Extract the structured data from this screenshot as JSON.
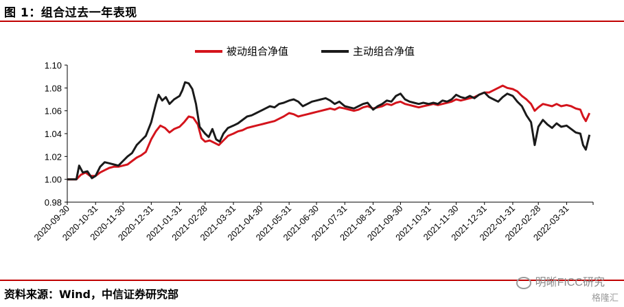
{
  "header": {
    "title": "图 1：组合过去一年表现"
  },
  "footer": {
    "source": "资料来源：Wind，中信证券研究部",
    "watermark": "明晰FICC研究",
    "logo": "格隆汇"
  },
  "colors": {
    "accent": "#c00000",
    "series1": "#d4141c",
    "series2": "#1a1a1a"
  },
  "chart_data": {
    "type": "line",
    "title": "",
    "xlabel": "",
    "ylabel": "",
    "ylim": [
      0.98,
      1.1
    ],
    "yticks": [
      "0.98",
      "1.00",
      "1.02",
      "1.04",
      "1.06",
      "1.08",
      "1.10"
    ],
    "legend_position": "top",
    "grid": false,
    "x_labels": [
      "2020-09-30",
      "2020-10-31",
      "2020-11-30",
      "2020-12-31",
      "2021-01-31",
      "2021-02-28",
      "2021-03-31",
      "2021-04-30",
      "2021-05-31",
      "2021-06-30",
      "2021-07-31",
      "2021-08-31",
      "2021-09-30",
      "2021-10-31",
      "2021-11-30",
      "2021-12-31",
      "2022-01-31",
      "2022-02-28",
      "2022-03-31"
    ],
    "series": [
      {
        "name": "被动组合净值",
        "color": "#d4141c",
        "points": [
          [
            "2020-09-30",
            1.0
          ],
          [
            "2020-10-05",
            1.0
          ],
          [
            "2020-10-10",
            1.0
          ],
          [
            "2020-10-15",
            1.004
          ],
          [
            "2020-10-20",
            1.006
          ],
          [
            "2020-10-25",
            1.003
          ],
          [
            "2020-10-31",
            1.003
          ],
          [
            "2020-11-05",
            1.006
          ],
          [
            "2020-11-10",
            1.008
          ],
          [
            "2020-11-15",
            1.01
          ],
          [
            "2020-11-20",
            1.011
          ],
          [
            "2020-11-25",
            1.011
          ],
          [
            "2020-11-30",
            1.012
          ],
          [
            "2020-12-05",
            1.013
          ],
          [
            "2020-12-10",
            1.016
          ],
          [
            "2020-12-15",
            1.019
          ],
          [
            "2020-12-20",
            1.021
          ],
          [
            "2020-12-25",
            1.024
          ],
          [
            "2020-12-31",
            1.035
          ],
          [
            "2021-01-05",
            1.042
          ],
          [
            "2021-01-10",
            1.047
          ],
          [
            "2021-01-15",
            1.045
          ],
          [
            "2021-01-20",
            1.041
          ],
          [
            "2021-01-25",
            1.044
          ],
          [
            "2021-01-31",
            1.046
          ],
          [
            "2021-02-05",
            1.05
          ],
          [
            "2021-02-10",
            1.055
          ],
          [
            "2021-02-15",
            1.054
          ],
          [
            "2021-02-20",
            1.048
          ],
          [
            "2021-02-24",
            1.036
          ],
          [
            "2021-02-28",
            1.033
          ],
          [
            "2021-03-05",
            1.034
          ],
          [
            "2021-03-10",
            1.032
          ],
          [
            "2021-03-15",
            1.03
          ],
          [
            "2021-03-20",
            1.034
          ],
          [
            "2021-03-25",
            1.038
          ],
          [
            "2021-03-31",
            1.04
          ],
          [
            "2021-04-05",
            1.042
          ],
          [
            "2021-04-10",
            1.043
          ],
          [
            "2021-04-15",
            1.045
          ],
          [
            "2021-04-20",
            1.046
          ],
          [
            "2021-04-25",
            1.047
          ],
          [
            "2021-04-30",
            1.048
          ],
          [
            "2021-05-05",
            1.049
          ],
          [
            "2021-05-10",
            1.05
          ],
          [
            "2021-05-15",
            1.051
          ],
          [
            "2021-05-20",
            1.053
          ],
          [
            "2021-05-25",
            1.055
          ],
          [
            "2021-05-31",
            1.058
          ],
          [
            "2021-06-05",
            1.057
          ],
          [
            "2021-06-10",
            1.055
          ],
          [
            "2021-06-15",
            1.056
          ],
          [
            "2021-06-20",
            1.057
          ],
          [
            "2021-06-25",
            1.058
          ],
          [
            "2021-06-30",
            1.059
          ],
          [
            "2021-07-05",
            1.06
          ],
          [
            "2021-07-10",
            1.061
          ],
          [
            "2021-07-15",
            1.062
          ],
          [
            "2021-07-20",
            1.061
          ],
          [
            "2021-07-25",
            1.063
          ],
          [
            "2021-07-31",
            1.062
          ],
          [
            "2021-08-05",
            1.061
          ],
          [
            "2021-08-10",
            1.06
          ],
          [
            "2021-08-15",
            1.061
          ],
          [
            "2021-08-20",
            1.063
          ],
          [
            "2021-08-25",
            1.064
          ],
          [
            "2021-08-31",
            1.062
          ],
          [
            "2021-09-05",
            1.063
          ],
          [
            "2021-09-10",
            1.064
          ],
          [
            "2021-09-15",
            1.066
          ],
          [
            "2021-09-20",
            1.065
          ],
          [
            "2021-09-25",
            1.067
          ],
          [
            "2021-09-30",
            1.068
          ],
          [
            "2021-10-05",
            1.066
          ],
          [
            "2021-10-10",
            1.065
          ],
          [
            "2021-10-15",
            1.064
          ],
          [
            "2021-10-20",
            1.063
          ],
          [
            "2021-10-25",
            1.064
          ],
          [
            "2021-10-31",
            1.065
          ],
          [
            "2021-11-05",
            1.066
          ],
          [
            "2021-11-10",
            1.065
          ],
          [
            "2021-11-15",
            1.066
          ],
          [
            "2021-11-20",
            1.067
          ],
          [
            "2021-11-25",
            1.068
          ],
          [
            "2021-11-30",
            1.07
          ],
          [
            "2021-12-05",
            1.069
          ],
          [
            "2021-12-10",
            1.07
          ],
          [
            "2021-12-15",
            1.071
          ],
          [
            "2021-12-20",
            1.072
          ],
          [
            "2021-12-25",
            1.074
          ],
          [
            "2021-12-31",
            1.076
          ],
          [
            "2022-01-05",
            1.076
          ],
          [
            "2022-01-10",
            1.078
          ],
          [
            "2022-01-15",
            1.08
          ],
          [
            "2022-01-20",
            1.082
          ],
          [
            "2022-01-25",
            1.08
          ],
          [
            "2022-01-31",
            1.079
          ],
          [
            "2022-02-05",
            1.077
          ],
          [
            "2022-02-10",
            1.073
          ],
          [
            "2022-02-15",
            1.07
          ],
          [
            "2022-02-20",
            1.066
          ],
          [
            "2022-02-24",
            1.06
          ],
          [
            "2022-02-28",
            1.063
          ],
          [
            "2022-03-05",
            1.066
          ],
          [
            "2022-03-10",
            1.065
          ],
          [
            "2022-03-15",
            1.064
          ],
          [
            "2022-03-20",
            1.066
          ],
          [
            "2022-03-25",
            1.064
          ],
          [
            "2022-03-31",
            1.065
          ],
          [
            "2022-04-05",
            1.064
          ],
          [
            "2022-04-10",
            1.062
          ],
          [
            "2022-04-15",
            1.061
          ],
          [
            "2022-04-18",
            1.055
          ],
          [
            "2022-04-21",
            1.051
          ],
          [
            "2022-04-25",
            1.058
          ]
        ]
      },
      {
        "name": "主动组合净值",
        "color": "#1a1a1a",
        "points": [
          [
            "2020-09-30",
            1.0
          ],
          [
            "2020-10-05",
            1.0
          ],
          [
            "2020-10-10",
            1.0
          ],
          [
            "2020-10-13",
            1.012
          ],
          [
            "2020-10-17",
            1.006
          ],
          [
            "2020-10-22",
            1.007
          ],
          [
            "2020-10-27",
            1.001
          ],
          [
            "2020-10-31",
            1.003
          ],
          [
            "2020-11-05",
            1.011
          ],
          [
            "2020-11-10",
            1.015
          ],
          [
            "2020-11-15",
            1.014
          ],
          [
            "2020-11-20",
            1.013
          ],
          [
            "2020-11-25",
            1.012
          ],
          [
            "2020-11-30",
            1.016
          ],
          [
            "2020-12-05",
            1.02
          ],
          [
            "2020-12-10",
            1.023
          ],
          [
            "2020-12-15",
            1.03
          ],
          [
            "2020-12-20",
            1.034
          ],
          [
            "2020-12-25",
            1.038
          ],
          [
            "2020-12-31",
            1.05
          ],
          [
            "2021-01-05",
            1.066
          ],
          [
            "2021-01-08",
            1.074
          ],
          [
            "2021-01-12",
            1.069
          ],
          [
            "2021-01-16",
            1.072
          ],
          [
            "2021-01-20",
            1.066
          ],
          [
            "2021-01-25",
            1.07
          ],
          [
            "2021-01-31",
            1.073
          ],
          [
            "2021-02-03",
            1.078
          ],
          [
            "2021-02-06",
            1.085
          ],
          [
            "2021-02-10",
            1.084
          ],
          [
            "2021-02-14",
            1.079
          ],
          [
            "2021-02-18",
            1.066
          ],
          [
            "2021-02-22",
            1.046
          ],
          [
            "2021-02-26",
            1.042
          ],
          [
            "2021-02-28",
            1.04
          ],
          [
            "2021-03-04",
            1.037
          ],
          [
            "2021-03-08",
            1.044
          ],
          [
            "2021-03-12",
            1.035
          ],
          [
            "2021-03-16",
            1.033
          ],
          [
            "2021-03-20",
            1.04
          ],
          [
            "2021-03-25",
            1.045
          ],
          [
            "2021-03-31",
            1.047
          ],
          [
            "2021-04-05",
            1.049
          ],
          [
            "2021-04-10",
            1.052
          ],
          [
            "2021-04-15",
            1.055
          ],
          [
            "2021-04-20",
            1.056
          ],
          [
            "2021-04-25",
            1.058
          ],
          [
            "2021-04-30",
            1.06
          ],
          [
            "2021-05-05",
            1.062
          ],
          [
            "2021-05-10",
            1.064
          ],
          [
            "2021-05-15",
            1.063
          ],
          [
            "2021-05-20",
            1.066
          ],
          [
            "2021-05-25",
            1.067
          ],
          [
            "2021-05-31",
            1.069
          ],
          [
            "2021-06-05",
            1.07
          ],
          [
            "2021-06-10",
            1.068
          ],
          [
            "2021-06-15",
            1.064
          ],
          [
            "2021-06-20",
            1.066
          ],
          [
            "2021-06-25",
            1.068
          ],
          [
            "2021-06-30",
            1.069
          ],
          [
            "2021-07-05",
            1.07
          ],
          [
            "2021-07-10",
            1.071
          ],
          [
            "2021-07-15",
            1.069
          ],
          [
            "2021-07-20",
            1.066
          ],
          [
            "2021-07-25",
            1.068
          ],
          [
            "2021-07-31",
            1.064
          ],
          [
            "2021-08-05",
            1.063
          ],
          [
            "2021-08-10",
            1.062
          ],
          [
            "2021-08-15",
            1.064
          ],
          [
            "2021-08-20",
            1.066
          ],
          [
            "2021-08-25",
            1.067
          ],
          [
            "2021-08-31",
            1.061
          ],
          [
            "2021-09-05",
            1.064
          ],
          [
            "2021-09-10",
            1.066
          ],
          [
            "2021-09-15",
            1.069
          ],
          [
            "2021-09-20",
            1.068
          ],
          [
            "2021-09-25",
            1.073
          ],
          [
            "2021-09-30",
            1.075
          ],
          [
            "2021-10-05",
            1.07
          ],
          [
            "2021-10-10",
            1.068
          ],
          [
            "2021-10-15",
            1.067
          ],
          [
            "2021-10-20",
            1.066
          ],
          [
            "2021-10-25",
            1.067
          ],
          [
            "2021-10-31",
            1.066
          ],
          [
            "2021-11-05",
            1.067
          ],
          [
            "2021-11-10",
            1.066
          ],
          [
            "2021-11-15",
            1.069
          ],
          [
            "2021-11-20",
            1.068
          ],
          [
            "2021-11-25",
            1.07
          ],
          [
            "2021-11-30",
            1.074
          ],
          [
            "2021-12-05",
            1.072
          ],
          [
            "2021-12-10",
            1.071
          ],
          [
            "2021-12-15",
            1.073
          ],
          [
            "2021-12-20",
            1.071
          ],
          [
            "2021-12-25",
            1.074
          ],
          [
            "2021-12-31",
            1.076
          ],
          [
            "2022-01-05",
            1.072
          ],
          [
            "2022-01-10",
            1.07
          ],
          [
            "2022-01-15",
            1.068
          ],
          [
            "2022-01-20",
            1.072
          ],
          [
            "2022-01-25",
            1.075
          ],
          [
            "2022-01-31",
            1.073
          ],
          [
            "2022-02-05",
            1.068
          ],
          [
            "2022-02-10",
            1.064
          ],
          [
            "2022-02-15",
            1.056
          ],
          [
            "2022-02-20",
            1.05
          ],
          [
            "2022-02-24",
            1.03
          ],
          [
            "2022-02-28",
            1.046
          ],
          [
            "2022-03-05",
            1.052
          ],
          [
            "2022-03-10",
            1.048
          ],
          [
            "2022-03-15",
            1.045
          ],
          [
            "2022-03-20",
            1.049
          ],
          [
            "2022-03-25",
            1.046
          ],
          [
            "2022-03-31",
            1.047
          ],
          [
            "2022-04-05",
            1.044
          ],
          [
            "2022-04-10",
            1.041
          ],
          [
            "2022-04-15",
            1.04
          ],
          [
            "2022-04-18",
            1.03
          ],
          [
            "2022-04-21",
            1.026
          ],
          [
            "2022-04-25",
            1.039
          ]
        ]
      }
    ]
  }
}
